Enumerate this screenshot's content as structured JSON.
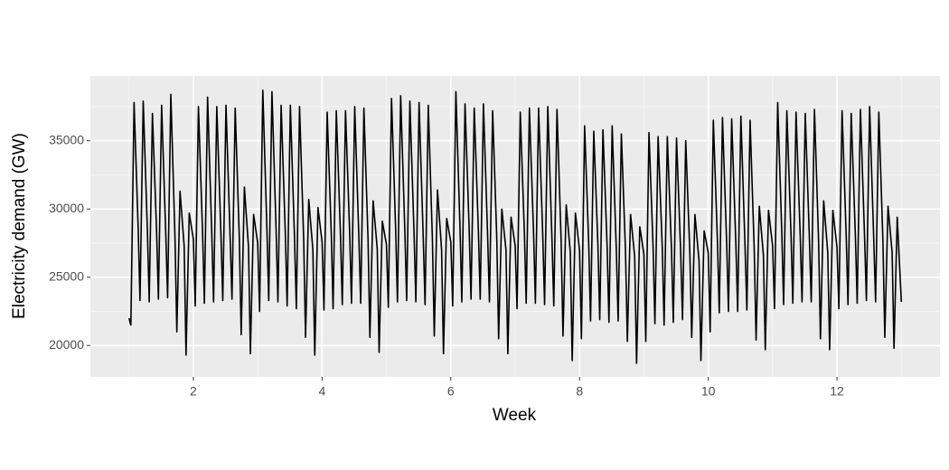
{
  "chart_data": {
    "type": "line",
    "xlabel": "Week",
    "ylabel": "Electricity demand (GW)",
    "color": "#000000",
    "grid": true,
    "xlim": [
      0.4,
      13.6
    ],
    "xticks": [
      2,
      4,
      6,
      8,
      10,
      12
    ],
    "ylim": [
      17700,
      39750
    ],
    "yticks": [
      20000,
      25000,
      30000,
      35000
    ],
    "x": [
      1,
      1.029,
      1.079,
      1.143,
      1.171,
      1.221,
      1.286,
      1.314,
      1.364,
      1.429,
      1.457,
      1.507,
      1.571,
      1.6,
      1.65,
      1.714,
      1.743,
      1.793,
      1.857,
      1.886,
      1.936,
      2,
      2.029,
      2.079,
      2.143,
      2.171,
      2.221,
      2.286,
      2.314,
      2.364,
      2.429,
      2.457,
      2.507,
      2.571,
      2.6,
      2.65,
      2.714,
      2.743,
      2.793,
      2.857,
      2.886,
      2.936,
      3,
      3.029,
      3.079,
      3.143,
      3.171,
      3.221,
      3.286,
      3.314,
      3.364,
      3.429,
      3.457,
      3.507,
      3.571,
      3.6,
      3.65,
      3.714,
      3.743,
      3.793,
      3.857,
      3.886,
      3.936,
      4,
      4.029,
      4.079,
      4.143,
      4.171,
      4.221,
      4.286,
      4.314,
      4.364,
      4.429,
      4.457,
      4.507,
      4.571,
      4.6,
      4.65,
      4.714,
      4.743,
      4.793,
      4.857,
      4.886,
      4.936,
      5,
      5.029,
      5.079,
      5.143,
      5.171,
      5.221,
      5.286,
      5.314,
      5.364,
      5.429,
      5.457,
      5.507,
      5.571,
      5.6,
      5.65,
      5.714,
      5.743,
      5.793,
      5.857,
      5.886,
      5.936,
      6,
      6.029,
      6.079,
      6.143,
      6.171,
      6.221,
      6.286,
      6.314,
      6.364,
      6.429,
      6.457,
      6.507,
      6.571,
      6.6,
      6.65,
      6.714,
      6.743,
      6.793,
      6.857,
      6.886,
      6.936,
      7,
      7.029,
      7.079,
      7.143,
      7.171,
      7.221,
      7.286,
      7.314,
      7.364,
      7.429,
      7.457,
      7.507,
      7.571,
      7.6,
      7.65,
      7.714,
      7.743,
      7.793,
      7.857,
      7.886,
      7.936,
      8,
      8.029,
      8.079,
      8.143,
      8.171,
      8.221,
      8.286,
      8.314,
      8.364,
      8.429,
      8.457,
      8.507,
      8.571,
      8.6,
      8.65,
      8.714,
      8.743,
      8.793,
      8.857,
      8.886,
      8.936,
      9,
      9.029,
      9.079,
      9.143,
      9.171,
      9.221,
      9.286,
      9.314,
      9.364,
      9.429,
      9.457,
      9.507,
      9.571,
      9.6,
      9.65,
      9.714,
      9.743,
      9.793,
      9.857,
      9.886,
      9.936,
      10,
      10.029,
      10.079,
      10.143,
      10.171,
      10.221,
      10.286,
      10.314,
      10.364,
      10.429,
      10.457,
      10.507,
      10.571,
      10.6,
      10.65,
      10.714,
      10.743,
      10.793,
      10.857,
      10.886,
      10.936,
      11,
      11.029,
      11.079,
      11.143,
      11.171,
      11.221,
      11.286,
      11.314,
      11.364,
      11.429,
      11.457,
      11.507,
      11.571,
      11.6,
      11.65,
      11.714,
      11.743,
      11.793,
      11.857,
      11.886,
      11.936,
      12,
      12.029,
      12.079,
      12.143,
      12.171,
      12.221,
      12.286,
      12.314,
      12.364,
      12.429,
      12.457,
      12.507,
      12.571,
      12.6,
      12.65,
      12.714,
      12.743,
      12.793,
      12.857,
      12.886,
      12.936,
      13
    ],
    "values": [
      22000,
      21500,
      37800,
      28500,
      23300,
      37900,
      28400,
      23200,
      37000,
      28300,
      23400,
      37600,
      28200,
      23500,
      38400,
      28000,
      21000,
      31300,
      27300,
      19300,
      29700,
      27800,
      22900,
      37500,
      28300,
      23100,
      38200,
      28200,
      23200,
      37500,
      28100,
      23300,
      37600,
      28000,
      23400,
      37400,
      27900,
      20800,
      31600,
      27200,
      19400,
      29600,
      27500,
      22500,
      38700,
      28500,
      23300,
      38600,
      28400,
      23200,
      37600,
      28200,
      22900,
      37600,
      28000,
      22700,
      37500,
      27800,
      20600,
      30700,
      27000,
      19300,
      30100,
      27600,
      22600,
      37100,
      28200,
      22700,
      37200,
      28100,
      23000,
      37200,
      28200,
      23100,
      37500,
      28000,
      23100,
      37400,
      27800,
      20600,
      30600,
      27100,
      19500,
      29100,
      27400,
      22800,
      38100,
      28500,
      23200,
      38300,
      28400,
      23300,
      37900,
      28200,
      23200,
      37800,
      28000,
      23000,
      37600,
      27800,
      20700,
      31400,
      27000,
      19400,
      29300,
      27600,
      22900,
      38600,
      28600,
      23200,
      37700,
      28400,
      23400,
      37400,
      28300,
      23400,
      37700,
      28200,
      23200,
      37200,
      27900,
      20500,
      30000,
      27000,
      19400,
      29400,
      27300,
      22700,
      37100,
      28300,
      23100,
      37400,
      28200,
      23100,
      37400,
      28000,
      23000,
      37500,
      27900,
      22900,
      37300,
      27700,
      20700,
      30300,
      26800,
      18900,
      29700,
      27000,
      20500,
      36100,
      27400,
      21800,
      35700,
      27300,
      21900,
      35800,
      27200,
      21700,
      36100,
      27100,
      21800,
      35500,
      26900,
      20300,
      29600,
      26500,
      18700,
      28700,
      26700,
      20300,
      35600,
      27200,
      21600,
      35300,
      27100,
      21500,
      35300,
      27000,
      21700,
      35200,
      26900,
      21900,
      35000,
      26800,
      20600,
      29600,
      26200,
      18900,
      28400,
      26800,
      21000,
      36500,
      27600,
      22400,
      36700,
      27500,
      22500,
      36600,
      27400,
      22500,
      36800,
      27300,
      22600,
      36500,
      27100,
      20400,
      30200,
      26600,
      19700,
      29900,
      27300,
      22700,
      37800,
      28200,
      23000,
      37200,
      28100,
      23100,
      37100,
      28000,
      23200,
      37000,
      27900,
      23200,
      37300,
      27700,
      20500,
      30600,
      26800,
      19700,
      29900,
      27200,
      22700,
      37200,
      28100,
      23000,
      37000,
      28000,
      23100,
      37300,
      27900,
      23300,
      37500,
      27800,
      23200,
      37100,
      27600,
      20600,
      30200,
      26800,
      19800,
      29400,
      23200
    ]
  }
}
